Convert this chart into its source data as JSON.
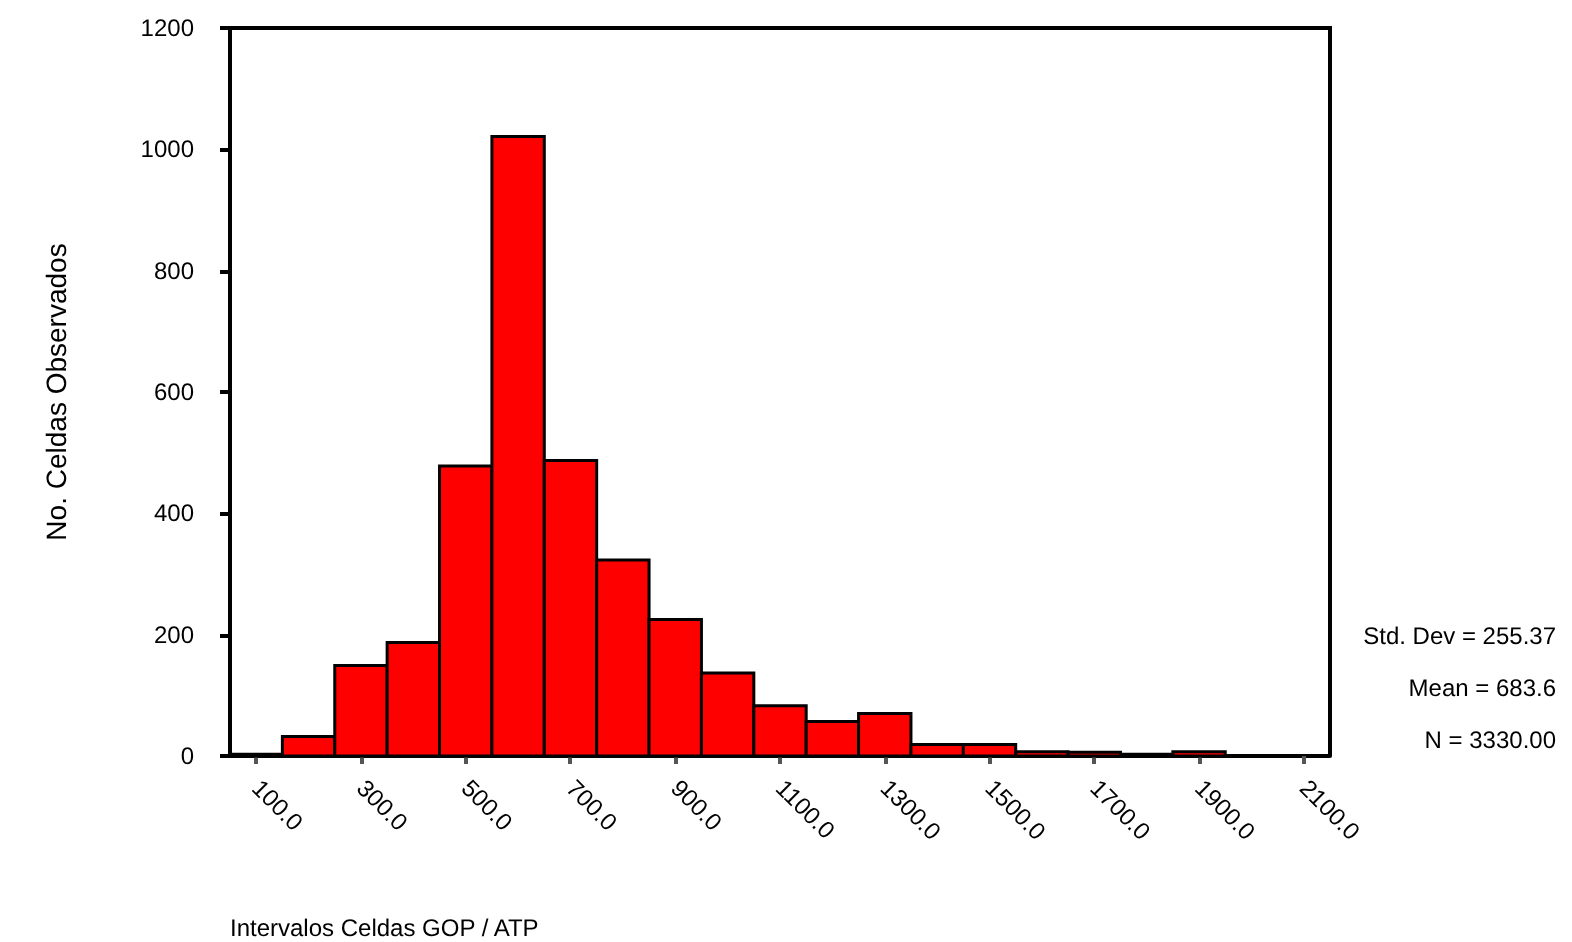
{
  "chart_data": {
    "type": "histogram",
    "xlabel": "Intervalos Celdas GOP / ATP",
    "ylabel": "No. Celdas Observados",
    "bins": [
      50,
      150,
      250,
      350,
      450,
      550,
      650,
      750,
      850,
      950,
      1050,
      1150,
      1250,
      1350,
      1450,
      1550,
      1650,
      1750,
      1850,
      1950
    ],
    "values": [
      3,
      32,
      149,
      187,
      478,
      1021,
      487,
      323,
      225,
      137,
      83,
      57,
      70,
      19,
      19,
      7,
      6,
      3,
      7
    ],
    "color": "#ff0000",
    "xlim": [
      50,
      2150
    ],
    "xticks": [
      {
        "value": 100,
        "label": "100.0"
      },
      {
        "value": 300,
        "label": "300.0"
      },
      {
        "value": 500,
        "label": "500.0"
      },
      {
        "value": 700,
        "label": "700.0"
      },
      {
        "value": 900,
        "label": "900.0"
      },
      {
        "value": 1100,
        "label": "1100.0"
      },
      {
        "value": 1300,
        "label": "1300.0"
      },
      {
        "value": 1500,
        "label": "1500.0"
      },
      {
        "value": 1700,
        "label": "1700.0"
      },
      {
        "value": 1900,
        "label": "1900.0"
      },
      {
        "value": 2100,
        "label": "2100.0"
      }
    ],
    "ylim": [
      0,
      1200
    ],
    "yticks": [
      0,
      200,
      400,
      600,
      800,
      1000,
      1200
    ],
    "grid": false,
    "annotations": [
      "Std. Dev = 255.37",
      "Mean = 683.6",
      "N = 3330.00"
    ]
  }
}
